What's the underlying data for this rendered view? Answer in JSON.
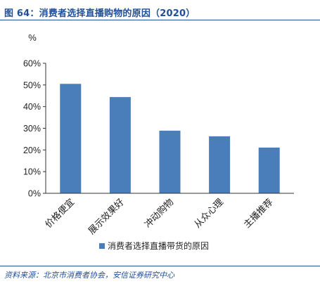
{
  "figure": {
    "title": "图 64：消费者选择直播购物的原因（2020）",
    "source": "资料来源：北京市消费者协会，安信证券研究中心"
  },
  "colors": {
    "bar": "#4a7ebb",
    "title": "#1f4e9a",
    "axis": "#333333",
    "text": "#222222"
  },
  "chart_data": {
    "type": "bar",
    "title": "",
    "ylabel": "%",
    "xlabel": "",
    "categories": [
      "价格便宜",
      "展示效果好",
      "冲动购物",
      "从众心理",
      "主播推荐"
    ],
    "series": [
      {
        "name": "消费者选择直播带货的原因",
        "values": [
          50.5,
          44.4,
          28.9,
          26.3,
          21.1
        ]
      }
    ],
    "ylim": [
      0,
      60
    ],
    "yticks": [
      0,
      10,
      20,
      30,
      40,
      50,
      60
    ],
    "ytick_labels": [
      "0%",
      "10%",
      "20%",
      "30%",
      "40%",
      "50%",
      "60%"
    ],
    "grid": false,
    "legend_position": "bottom"
  }
}
